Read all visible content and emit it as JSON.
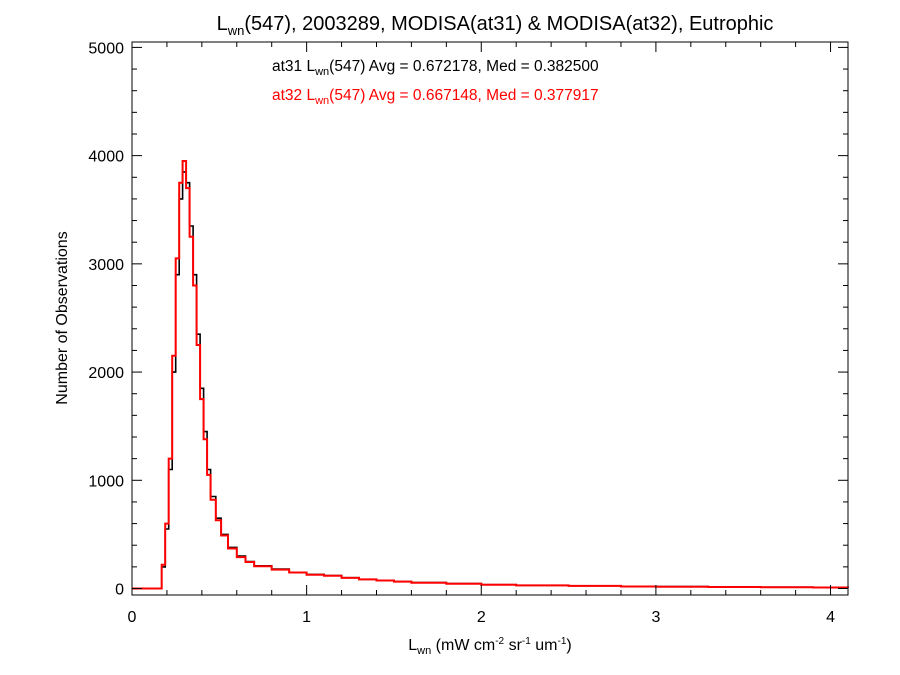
{
  "chart_data": {
    "type": "line",
    "title": {
      "sym": "L",
      "sub": "wn",
      "rest": "(547), 2003289, MODISA(at31) & MODISA(at32), Eutrophic"
    },
    "xlabel": {
      "sym": "L",
      "sub": "wn",
      "p1": " (mW cm",
      "e1": "-2",
      "p2": " sr",
      "e2": "-1",
      "p3": " um",
      "e3": "-1",
      "p4": ")"
    },
    "ylabel": "Number of Observations",
    "xlim": [
      0,
      4.1
    ],
    "ylim": [
      -60,
      5050
    ],
    "xticks": [
      0,
      1,
      2,
      3,
      4
    ],
    "xtick_labels": [
      "0",
      "1",
      "2",
      "3",
      "4"
    ],
    "yticks": [
      0,
      1000,
      2000,
      3000,
      4000,
      5000
    ],
    "ytick_labels": [
      "0",
      "1000",
      "2000",
      "3000",
      "4000",
      "5000"
    ],
    "grid": false,
    "legend_position": "top-center",
    "legend": [
      {
        "sensor": "at31",
        "sym": "L",
        "sub": "wn",
        "stats": "(547) Avg = 0.672178, Med = 0.382500",
        "color": "#000000"
      },
      {
        "sensor": "at32",
        "sym": "L",
        "sub": "wn",
        "stats": "(547) Avg = 0.667148, Med = 0.377917",
        "color": "#ff0000"
      }
    ],
    "series": [
      {
        "name": "at31",
        "color": "#000000",
        "x": [
          0.0,
          0.1,
          0.15,
          0.17,
          0.19,
          0.21,
          0.23,
          0.25,
          0.27,
          0.29,
          0.31,
          0.33,
          0.35,
          0.37,
          0.39,
          0.41,
          0.43,
          0.45,
          0.48,
          0.51,
          0.55,
          0.6,
          0.65,
          0.7,
          0.8,
          0.9,
          1.0,
          1.1,
          1.2,
          1.3,
          1.4,
          1.5,
          1.6,
          1.8,
          2.0,
          2.2,
          2.5,
          2.8,
          3.0,
          3.3,
          3.6,
          3.9,
          4.1
        ],
        "y": [
          0,
          0,
          0,
          200,
          550,
          1100,
          2000,
          2900,
          3600,
          3850,
          3750,
          3350,
          2900,
          2350,
          1850,
          1450,
          1100,
          850,
          650,
          500,
          380,
          300,
          250,
          210,
          180,
          150,
          130,
          120,
          100,
          85,
          75,
          65,
          55,
          45,
          35,
          30,
          25,
          20,
          18,
          15,
          12,
          10,
          8
        ]
      },
      {
        "name": "at32",
        "color": "#ff0000",
        "x": [
          0.0,
          0.1,
          0.15,
          0.17,
          0.19,
          0.21,
          0.23,
          0.25,
          0.27,
          0.29,
          0.31,
          0.33,
          0.35,
          0.37,
          0.39,
          0.41,
          0.43,
          0.45,
          0.48,
          0.51,
          0.55,
          0.6,
          0.65,
          0.7,
          0.8,
          0.9,
          1.0,
          1.1,
          1.2,
          1.3,
          1.4,
          1.5,
          1.6,
          1.8,
          2.0,
          2.2,
          2.5,
          2.8,
          3.0,
          3.3,
          3.6,
          3.9,
          4.1
        ],
        "y": [
          0,
          0,
          0,
          220,
          600,
          1200,
          2150,
          3050,
          3750,
          3950,
          3700,
          3250,
          2800,
          2250,
          1750,
          1380,
          1050,
          820,
          630,
          490,
          370,
          290,
          245,
          205,
          175,
          148,
          128,
          118,
          98,
          84,
          74,
          64,
          54,
          44,
          34,
          29,
          24,
          19,
          17,
          14,
          11,
          9,
          7
        ]
      }
    ]
  }
}
